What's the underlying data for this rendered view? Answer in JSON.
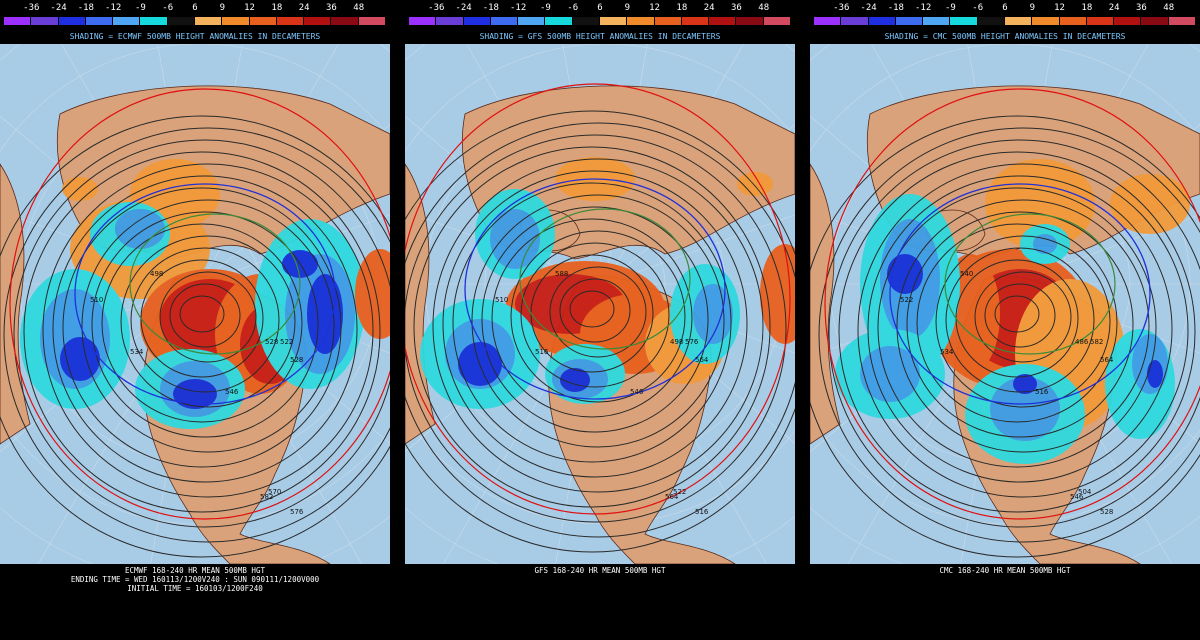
{
  "scale": {
    "labels": [
      "-36",
      "-24",
      "-18",
      "-12",
      "-9",
      "-6",
      "6",
      "9",
      "12",
      "18",
      "24",
      "36",
      "48"
    ],
    "colors": [
      "#9b30ff",
      "#6a3dd6",
      "#1f2ee0",
      "#3d6cf0",
      "#4fa6f5",
      "#15d9dc",
      "#111111",
      "#f5b25c",
      "#f08a2a",
      "#e8601d",
      "#d93318",
      "#b01010",
      "#8a0a14",
      "#d24a60"
    ]
  },
  "colors": {
    "ocean": "#a8cbe6",
    "land": "#d9a27a",
    "coast": "#5a2a1a",
    "pos1": "#f29a3a",
    "pos2": "#e8601d",
    "pos3": "#c81e14",
    "neg1": "#2fd9de",
    "neg2": "#3d9de6",
    "neg3": "#1530d8",
    "contour": "#2a2a2a",
    "ring_red": "#e01010",
    "ring_blue": "#2030d8",
    "ring_green": "#3a8a3a"
  },
  "panels": [
    {
      "shading_title": "SHADING = ECMWF 500MB HEIGHT ANOMALIES IN DECAMETERS",
      "caption_lines": [
        "ECMWF 168-240 HR MEAN 500MB HGT",
        "ENDING TIME = WED 160113/1200V240 : SUN 090111/1200V000",
        "INITIAL TIME = 160103/1200F240"
      ],
      "contour_labels": [
        "498",
        "510",
        "528",
        "534",
        "546",
        "570",
        "576",
        "582",
        "522",
        "528"
      ]
    },
    {
      "shading_title": "SHADING = GFS 500MB HEIGHT ANOMALIES IN DECAMETERS",
      "caption_lines": [
        "GFS 168-240 HR MEAN 500MB HGT"
      ],
      "contour_labels": [
        "588",
        "510",
        "498",
        "516",
        "546",
        "522",
        "516",
        "564",
        "576",
        "564"
      ]
    },
    {
      "shading_title": "SHADING = CMC 500MB HEIGHT ANOMALIES IN DECAMETERS",
      "caption_lines": [
        "CMC 168-240 HR MEAN 500MB HGT"
      ],
      "contour_labels": [
        "540",
        "522",
        "486",
        "534",
        "516",
        "504",
        "528",
        "546",
        "582",
        "564"
      ]
    }
  ]
}
